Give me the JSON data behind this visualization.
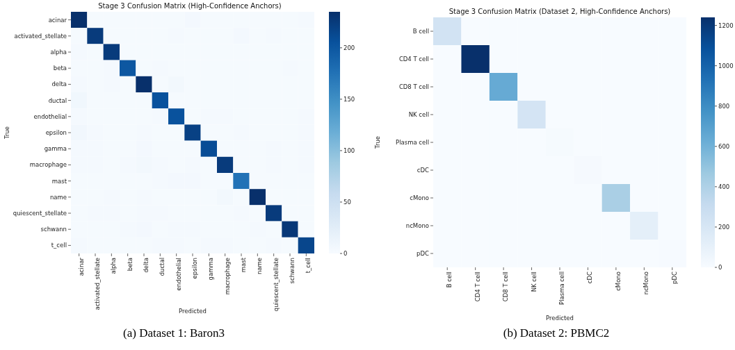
{
  "chart_data": [
    {
      "type": "heatmap",
      "title": "Stage 3 Confusion Matrix (High-Confidence Anchors)",
      "xlabel": "Predicted",
      "ylabel": "True",
      "annotations": [
        "(a) Dataset 1: Baron3"
      ],
      "categories": [
        "acinar",
        "activated_stellate",
        "alpha",
        "beta",
        "delta",
        "ductal",
        "endothelial",
        "epsilon",
        "gamma",
        "macrophage",
        "mast",
        "name",
        "quiescent_stellate",
        "schwann",
        "t_cell"
      ],
      "y_categories": [
        "acinar",
        "activated_stellate",
        "alpha",
        "beta",
        "delta",
        "ductal",
        "endothelial",
        "epsilon",
        "gamma",
        "macrophage",
        "mast",
        "name",
        "quiescent_stellate",
        "schwann",
        "t_cell"
      ],
      "cells": [
        [
          235,
          2,
          2,
          2,
          2,
          2,
          2,
          5,
          2,
          2,
          2,
          2,
          2,
          2,
          3
        ],
        [
          2,
          225,
          2,
          2,
          2,
          2,
          3,
          2,
          2,
          2,
          5,
          2,
          3,
          2,
          2
        ],
        [
          3,
          2,
          225,
          2,
          2,
          2,
          2,
          2,
          2,
          2,
          2,
          2,
          2,
          2,
          2
        ],
        [
          2,
          2,
          3,
          200,
          2,
          3,
          2,
          2,
          2,
          2,
          2,
          2,
          2,
          3,
          2
        ],
        [
          3,
          2,
          3,
          2,
          235,
          2,
          6,
          2,
          2,
          2,
          2,
          2,
          2,
          2,
          2
        ],
        [
          8,
          2,
          2,
          2,
          2,
          205,
          2,
          2,
          2,
          2,
          2,
          2,
          2,
          2,
          2
        ],
        [
          3,
          2,
          2,
          2,
          2,
          3,
          205,
          2,
          3,
          3,
          2,
          2,
          2,
          2,
          4
        ],
        [
          7,
          3,
          2,
          2,
          3,
          2,
          2,
          220,
          2,
          2,
          3,
          2,
          2,
          2,
          3
        ],
        [
          3,
          3,
          2,
          2,
          5,
          2,
          2,
          2,
          210,
          2,
          2,
          2,
          4,
          2,
          4
        ],
        [
          3,
          3,
          2,
          3,
          6,
          3,
          2,
          3,
          2,
          225,
          2,
          2,
          3,
          2,
          3
        ],
        [
          2,
          2,
          2,
          2,
          2,
          3,
          5,
          5,
          2,
          2,
          175,
          2,
          2,
          2,
          2
        ],
        [
          2,
          2,
          3,
          2,
          3,
          2,
          2,
          2,
          2,
          6,
          2,
          235,
          2,
          2,
          2
        ],
        [
          2,
          4,
          3,
          2,
          3,
          3,
          2,
          2,
          2,
          2,
          3,
          2,
          225,
          2,
          2
        ],
        [
          2,
          2,
          2,
          3,
          5,
          2,
          3,
          3,
          2,
          2,
          2,
          3,
          2,
          228,
          2
        ],
        [
          4,
          2,
          2,
          2,
          2,
          3,
          3,
          2,
          3,
          4,
          2,
          2,
          3,
          2,
          215
        ]
      ],
      "clim": [
        0,
        235
      ],
      "cticks": [
        0,
        50,
        100,
        150,
        200
      ]
    },
    {
      "type": "heatmap",
      "title": "Stage 3 Confusion Matrix (Dataset 2, High-Confidence Anchors)",
      "xlabel": "Predicted",
      "ylabel": "True",
      "annotations": [
        "(b) Dataset 2: PBMC2"
      ],
      "categories": [
        "B cell",
        "CD4 T cell",
        "CD8 T cell",
        "NK cell",
        "Plasma cell",
        "cDC",
        "cMono",
        "ncMono",
        "pDC"
      ],
      "y_categories": [
        "B cell",
        "CD4 T cell",
        "CD8 T cell",
        "NK cell",
        "Plasma cell",
        "cDC",
        "cMono",
        "ncMono",
        "pDC"
      ],
      "cells": [
        [
          230,
          0,
          0,
          0,
          0,
          0,
          0,
          0,
          0
        ],
        [
          0,
          1240,
          0,
          0,
          0,
          0,
          0,
          0,
          0
        ],
        [
          0,
          0,
          640,
          0,
          0,
          0,
          0,
          0,
          0
        ],
        [
          0,
          0,
          0,
          220,
          0,
          0,
          0,
          0,
          0
        ],
        [
          0,
          0,
          0,
          0,
          10,
          0,
          0,
          0,
          0
        ],
        [
          0,
          0,
          0,
          0,
          0,
          15,
          0,
          0,
          0
        ],
        [
          0,
          0,
          0,
          0,
          0,
          0,
          420,
          0,
          0
        ],
        [
          0,
          0,
          0,
          0,
          0,
          0,
          0,
          120,
          0
        ],
        [
          0,
          0,
          0,
          0,
          0,
          0,
          0,
          0,
          8
        ]
      ],
      "clim": [
        0,
        1240
      ],
      "cticks": [
        0,
        200,
        400,
        600,
        800,
        1000,
        1200
      ]
    }
  ]
}
